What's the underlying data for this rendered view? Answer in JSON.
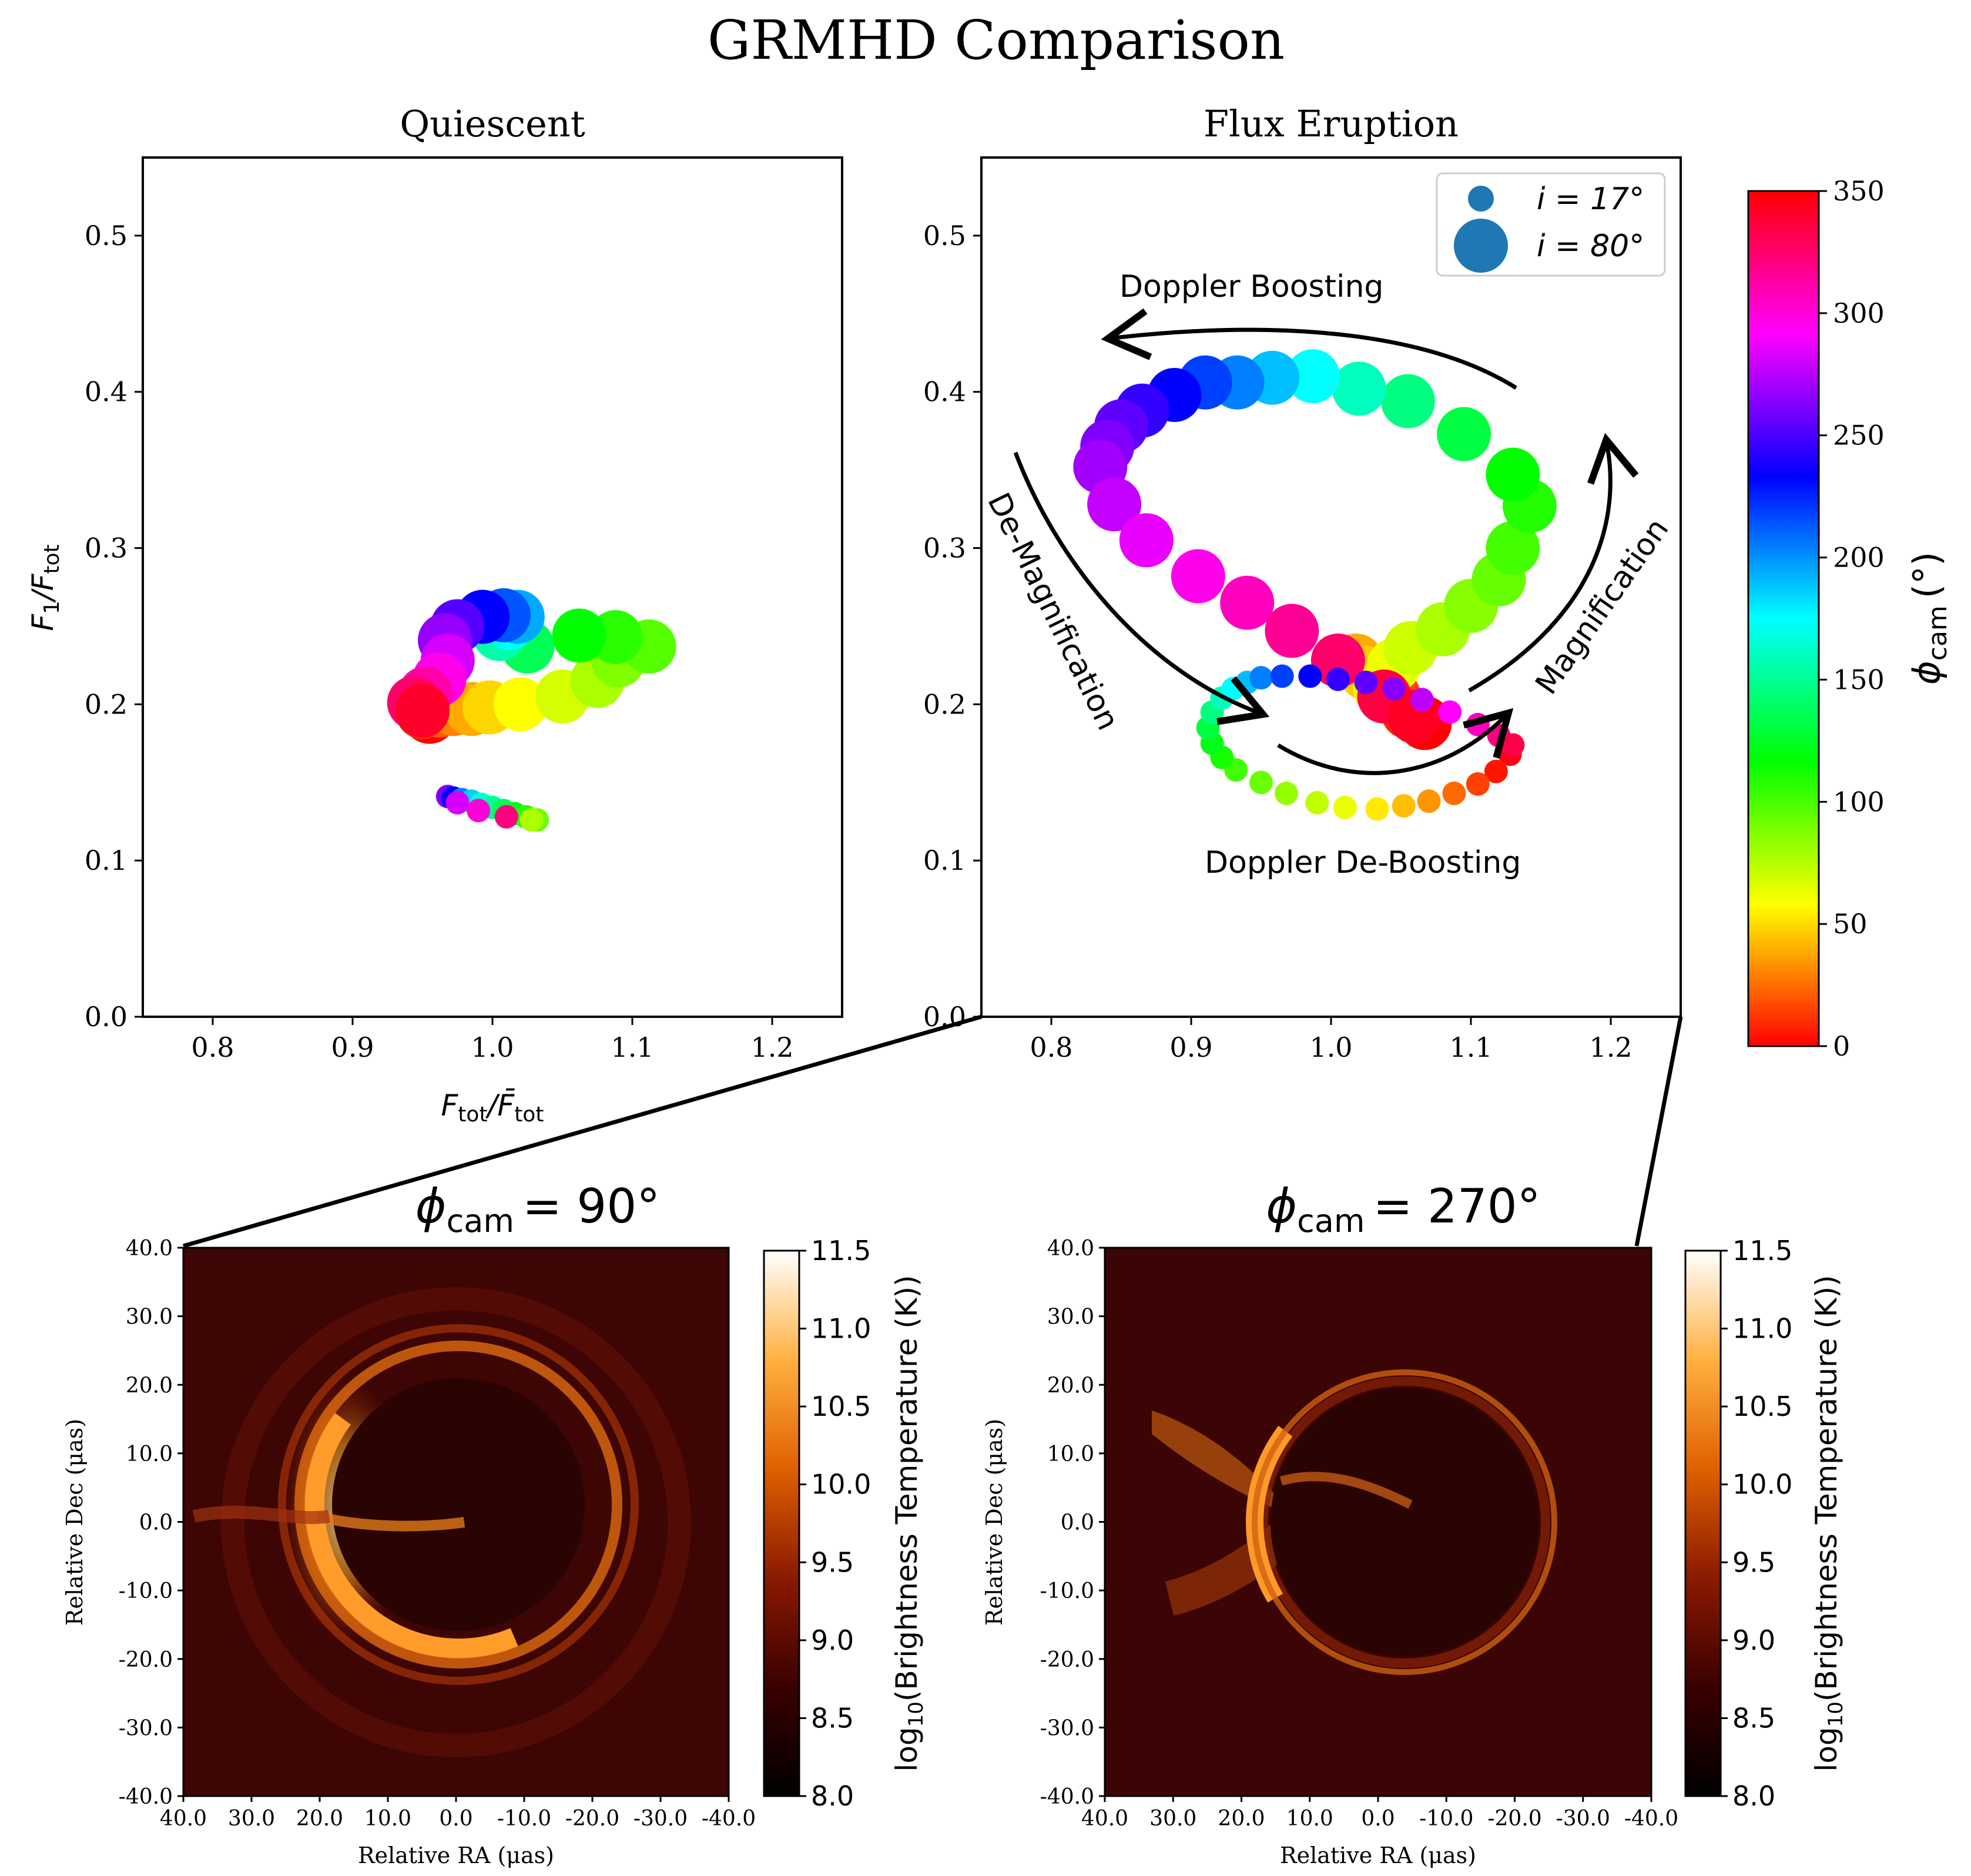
{
  "figure_title": "GRMHD Comparison",
  "chart_data": [
    {
      "id": "quiescent",
      "type": "scatter",
      "title": "Quiescent",
      "xlabel_main": "F",
      "xlabel_sub": "tot",
      "xlabel_mid": "/",
      "xlabel_main2": "F̄",
      "xlabel_sub2": "tot",
      "ylabel_main": "F",
      "ylabel_sub": "1",
      "ylabel_mid": "/F",
      "ylabel_sub2": "tot",
      "xlim": [
        0.75,
        1.25
      ],
      "ylim": [
        0.0,
        0.55
      ],
      "xticks": [
        "0.8",
        "0.9",
        "1.0",
        "1.1",
        "1.2"
      ],
      "yticks": [
        "0.0",
        "0.1",
        "0.2",
        "0.3",
        "0.4",
        "0.5"
      ],
      "color_variable": "phi_cam",
      "series": [
        {
          "inclination": "80",
          "points": [
            [
              0.955,
              0.192,
              0
            ],
            [
              0.95,
              0.195,
              10
            ],
            [
              0.962,
              0.196,
              20
            ],
            [
              0.972,
              0.197,
              30
            ],
            [
              0.985,
              0.197,
              40
            ],
            [
              0.998,
              0.198,
              50
            ],
            [
              1.02,
              0.2,
              60
            ],
            [
              1.05,
              0.205,
              70
            ],
            [
              1.075,
              0.215,
              80
            ],
            [
              1.09,
              0.228,
              90
            ],
            [
              1.112,
              0.237,
              100
            ],
            [
              1.088,
              0.243,
              110
            ],
            [
              1.062,
              0.244,
              120
            ],
            [
              1.025,
              0.237,
              140
            ],
            [
              1.005,
              0.245,
              160
            ],
            [
              1.012,
              0.252,
              180
            ],
            [
              1.018,
              0.256,
              200
            ],
            [
              1.008,
              0.257,
              220
            ],
            [
              0.993,
              0.256,
              240
            ],
            [
              0.975,
              0.25,
              260
            ],
            [
              0.966,
              0.241,
              275
            ],
            [
              0.968,
              0.228,
              290
            ],
            [
              0.962,
              0.216,
              305
            ],
            [
              0.952,
              0.207,
              320
            ],
            [
              0.944,
              0.201,
              335
            ],
            [
              0.95,
              0.196,
              350
            ]
          ]
        },
        {
          "inclination": "17",
          "points": [
            [
              0.968,
              0.141,
              270
            ],
            [
              0.972,
              0.14,
              240
            ],
            [
              0.978,
              0.139,
              210
            ],
            [
              0.985,
              0.138,
              190
            ],
            [
              0.992,
              0.136,
              170
            ],
            [
              1.0,
              0.134,
              155
            ],
            [
              1.008,
              0.132,
              140
            ],
            [
              1.016,
              0.13,
              125
            ],
            [
              1.024,
              0.128,
              110
            ],
            [
              1.032,
              0.126,
              95
            ],
            [
              1.028,
              0.126,
              80
            ],
            [
              1.01,
              0.128,
              330
            ],
            [
              0.99,
              0.132,
              310
            ],
            [
              0.975,
              0.137,
              290
            ]
          ]
        }
      ]
    },
    {
      "id": "flux_eruption",
      "type": "scatter",
      "title": "Flux Eruption",
      "xlim": [
        0.75,
        1.25
      ],
      "ylim": [
        0.0,
        0.55
      ],
      "xticks": [
        "0.8",
        "0.9",
        "1.0",
        "1.1",
        "1.2"
      ],
      "yticks": [
        "0.0",
        "0.1",
        "0.2",
        "0.3",
        "0.4",
        "0.5"
      ],
      "color_variable": "phi_cam",
      "legend": {
        "placement": "top-right",
        "entries": [
          {
            "label": "i = 17°",
            "size": "small"
          },
          {
            "label": "i = 80°",
            "size": "large"
          }
        ]
      },
      "annotations": [
        "Doppler Boosting",
        "De-Magnification",
        "Magnification",
        "Doppler De-Boosting"
      ],
      "series": [
        {
          "inclination": "80",
          "points": [
            [
              1.067,
              0.188,
              0
            ],
            [
              1.055,
              0.195,
              8
            ],
            [
              1.045,
              0.205,
              16
            ],
            [
              1.035,
              0.215,
              24
            ],
            [
              1.025,
              0.222,
              32
            ],
            [
              1.018,
              0.228,
              40
            ],
            [
              1.025,
              0.22,
              48
            ],
            [
              1.035,
              0.21,
              56
            ],
            [
              1.045,
              0.225,
              64
            ],
            [
              1.057,
              0.236,
              72
            ],
            [
              1.08,
              0.248,
              80
            ],
            [
              1.1,
              0.263,
              88
            ],
            [
              1.12,
              0.28,
              96
            ],
            [
              1.13,
              0.3,
              104
            ],
            [
              1.142,
              0.327,
              112
            ],
            [
              1.13,
              0.347,
              120
            ],
            [
              1.095,
              0.373,
              135
            ],
            [
              1.055,
              0.394,
              150
            ],
            [
              1.02,
              0.402,
              165
            ],
            [
              0.987,
              0.41,
              180
            ],
            [
              0.958,
              0.409,
              195
            ],
            [
              0.933,
              0.406,
              210
            ],
            [
              0.91,
              0.406,
              225
            ],
            [
              0.888,
              0.398,
              240
            ],
            [
              0.865,
              0.388,
              252
            ],
            [
              0.85,
              0.378,
              262
            ],
            [
              0.84,
              0.365,
              270
            ],
            [
              0.835,
              0.352,
              278
            ],
            [
              0.845,
              0.328,
              286
            ],
            [
              0.868,
              0.305,
              295
            ],
            [
              0.905,
              0.282,
              305
            ],
            [
              0.94,
              0.265,
              315
            ],
            [
              0.972,
              0.247,
              325
            ],
            [
              1.005,
              0.228,
              335
            ],
            [
              1.038,
              0.205,
              345
            ],
            [
              1.06,
              0.192,
              352
            ]
          ]
        },
        {
          "inclination": "17",
          "points": [
            [
              1.128,
              0.168,
              355
            ],
            [
              1.118,
              0.157,
              5
            ],
            [
              1.105,
              0.149,
              15
            ],
            [
              1.088,
              0.143,
              25
            ],
            [
              1.07,
              0.138,
              35
            ],
            [
              1.052,
              0.135,
              45
            ],
            [
              1.033,
              0.133,
              55
            ],
            [
              1.01,
              0.134,
              65
            ],
            [
              0.99,
              0.137,
              75
            ],
            [
              0.968,
              0.143,
              85
            ],
            [
              0.95,
              0.15,
              95
            ],
            [
              0.932,
              0.158,
              105
            ],
            [
              0.922,
              0.166,
              115
            ],
            [
              0.915,
              0.175,
              125
            ],
            [
              0.912,
              0.185,
              135
            ],
            [
              0.915,
              0.195,
              150
            ],
            [
              0.922,
              0.204,
              165
            ],
            [
              0.93,
              0.21,
              180
            ],
            [
              0.94,
              0.214,
              195
            ],
            [
              0.95,
              0.217,
              210
            ],
            [
              0.965,
              0.218,
              225
            ],
            [
              0.985,
              0.218,
              240
            ],
            [
              1.005,
              0.216,
              252
            ],
            [
              1.025,
              0.214,
              262
            ],
            [
              1.045,
              0.21,
              272
            ],
            [
              1.065,
              0.203,
              285
            ],
            [
              1.085,
              0.195,
              300
            ],
            [
              1.105,
              0.187,
              315
            ],
            [
              1.12,
              0.18,
              330
            ],
            [
              1.13,
              0.174,
              343
            ]
          ]
        }
      ]
    },
    {
      "id": "phi_colorbar",
      "type": "heatmap",
      "label_main": "ϕ",
      "label_sub": "cam",
      "label_unit": "(°)",
      "range": [
        0,
        350
      ],
      "ticks": [
        "0",
        "50",
        "100",
        "150",
        "200",
        "250",
        "300",
        "350"
      ]
    },
    {
      "id": "image_phi90",
      "type": "heatmap",
      "title_main": "ϕ",
      "title_sub": "cam",
      "title_rest": "= 90°",
      "xlabel": "Relative RA (μas)",
      "ylabel": "Relative Dec (μas)",
      "xlim": [
        40.0,
        -40.0
      ],
      "ylim": [
        -40.0,
        40.0
      ],
      "xticks": [
        "40.0",
        "30.0",
        "20.0",
        "10.0",
        "0.0",
        "-10.0",
        "-20.0",
        "-30.0",
        "-40.0"
      ],
      "yticks": [
        "40.0",
        "30.0",
        "20.0",
        "10.0",
        "0.0",
        "-10.0",
        "-20.0",
        "-30.0",
        "-40.0"
      ],
      "colorbar": {
        "label_pre": "log",
        "label_sub": "10",
        "label_post": "(Brightness Temperature (K))",
        "range": [
          8.0,
          11.5
        ],
        "ticks": [
          "8.0",
          "8.5",
          "9.0",
          "9.5",
          "10.0",
          "10.5",
          "11.0",
          "11.5"
        ]
      }
    },
    {
      "id": "image_phi270",
      "type": "heatmap",
      "title_main": "ϕ",
      "title_sub": "cam",
      "title_rest": "= 270°",
      "xlabel": "Relative RA (μas)",
      "ylabel": "Relative Dec (μas)",
      "xlim": [
        40.0,
        -40.0
      ],
      "ylim": [
        -40.0,
        40.0
      ],
      "xticks": [
        "40.0",
        "30.0",
        "20.0",
        "10.0",
        "0.0",
        "-10.0",
        "-20.0",
        "-30.0",
        "-40.0"
      ],
      "yticks": [
        "40.0",
        "30.0",
        "20.0",
        "10.0",
        "0.0",
        "-10.0",
        "-20.0",
        "-30.0",
        "-40.0"
      ],
      "colorbar": {
        "label_pre": "log",
        "label_sub": "10",
        "label_post": "(Brightness Temperature (K))",
        "range": [
          8.0,
          11.5
        ],
        "ticks": [
          "8.0",
          "8.5",
          "9.0",
          "9.5",
          "10.0",
          "10.5",
          "11.0",
          "11.5"
        ]
      }
    }
  ]
}
